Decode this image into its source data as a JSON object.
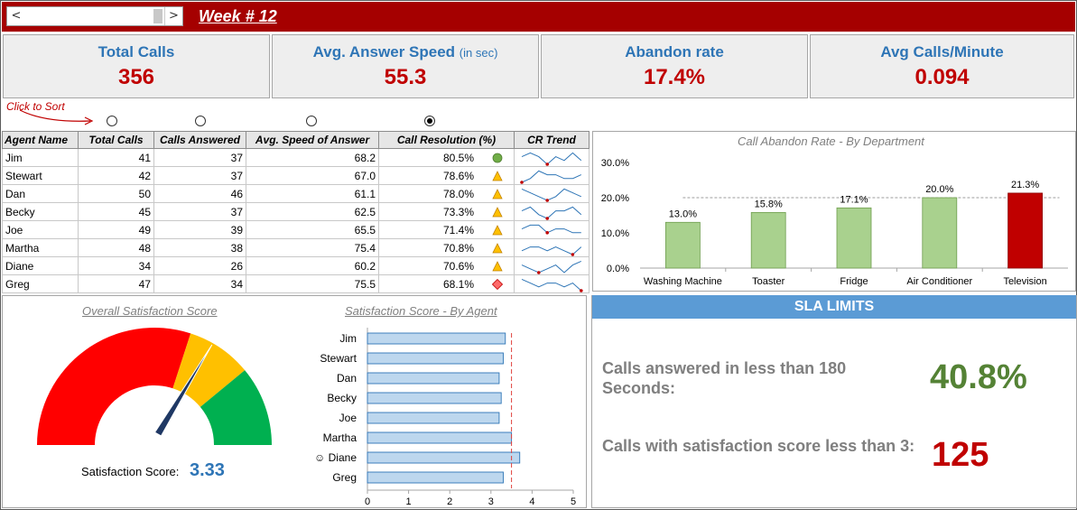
{
  "header": {
    "week_title": "Week # 12",
    "scroll_left": "<",
    "scroll_right": ">"
  },
  "kpis": [
    {
      "label": "Total Calls",
      "sub": "",
      "value": "356"
    },
    {
      "label": "Avg. Answer Speed",
      "sub": "(in sec)",
      "value": "55.3"
    },
    {
      "label": "Abandon rate",
      "sub": "",
      "value": "17.4%"
    },
    {
      "label": "Avg Calls/Minute",
      "sub": "",
      "value": "0.094"
    }
  ],
  "sort": {
    "hint": "Click to Sort",
    "selected_column": "Call Resolution (%)"
  },
  "table": {
    "headers": [
      "Agent Name",
      "Total Calls",
      "Calls Answered",
      "Avg. Speed of Answer",
      "Call Resolution (%)",
      "CR Trend"
    ],
    "rows": [
      {
        "name": "Jim",
        "total": "41",
        "answered": "37",
        "speed": "68.2",
        "resolution": "80.5%",
        "status": "good-circle-icon"
      },
      {
        "name": "Stewart",
        "total": "42",
        "answered": "37",
        "speed": "67.0",
        "resolution": "78.6%",
        "status": "warning-triangle-icon"
      },
      {
        "name": "Dan",
        "total": "50",
        "answered": "46",
        "speed": "61.1",
        "resolution": "78.0%",
        "status": "warning-triangle-icon"
      },
      {
        "name": "Becky",
        "total": "45",
        "answered": "37",
        "speed": "62.5",
        "resolution": "73.3%",
        "status": "warning-triangle-icon"
      },
      {
        "name": "Joe",
        "total": "49",
        "answered": "39",
        "speed": "65.5",
        "resolution": "71.4%",
        "status": "warning-triangle-icon"
      },
      {
        "name": "Martha",
        "total": "48",
        "answered": "38",
        "speed": "75.4",
        "resolution": "70.8%",
        "status": "warning-triangle-icon"
      },
      {
        "name": "Diane",
        "total": "34",
        "answered": "26",
        "speed": "60.2",
        "resolution": "70.6%",
        "status": "warning-triangle-icon"
      },
      {
        "name": "Greg",
        "total": "47",
        "answered": "34",
        "speed": "75.5",
        "resolution": "68.1%",
        "status": "critical-diamond-icon"
      }
    ]
  },
  "colors": {
    "header_red": "#a50000",
    "kpi_blue": "#2e75b6",
    "kpi_red": "#c00000",
    "bar_green": "#a9d18e",
    "bar_red": "#c00000",
    "sat_bar": "#bdd7ee",
    "sla_green": "#548235",
    "sla_red": "#c00000",
    "sla_header": "#5b9bd5"
  },
  "gauge": {
    "title": "Overall Satisfaction Score",
    "label": "Satisfaction Score:",
    "value": "3.33",
    "needle_value": 3.33,
    "max": 5
  },
  "sla": {
    "title": "SLA LIMITS",
    "items": [
      {
        "text": "Calls answered in less than 180 Seconds:",
        "value": "40.8%"
      },
      {
        "text": "Calls with satisfaction score less than 3:",
        "value": "125"
      }
    ]
  },
  "chart_data": [
    {
      "type": "bar",
      "title": "Call Abandon Rate - By Department",
      "categories": [
        "Washing Machine",
        "Toaster",
        "Fridge",
        "Air Conditioner",
        "Television"
      ],
      "values": [
        13.0,
        15.8,
        17.1,
        20.0,
        21.3
      ],
      "data_labels": [
        "13.0%",
        "15.8%",
        "17.1%",
        "20.0%",
        "21.3%"
      ],
      "y_ticks": [
        "0.0%",
        "10.0%",
        "20.0%",
        "30.0%"
      ],
      "ylim": [
        0,
        30
      ],
      "reference_line": 20,
      "highlight_category": "Television"
    },
    {
      "type": "bar",
      "orientation": "horizontal",
      "title": "Satisfaction Score - By Agent",
      "categories": [
        "Jim",
        "Stewart",
        "Dan",
        "Becky",
        "Joe",
        "Martha",
        "Diane",
        "Greg"
      ],
      "category_labels": [
        "Jim",
        "Stewart",
        "Dan",
        "Becky",
        "Joe",
        "Martha",
        "☺ Diane",
        "Greg"
      ],
      "values": [
        3.35,
        3.3,
        3.2,
        3.25,
        3.2,
        3.5,
        3.7,
        3.3
      ],
      "x_ticks": [
        "0",
        "1",
        "2",
        "3",
        "4",
        "5"
      ],
      "xlim": [
        0,
        5
      ],
      "reference_line": 3.5
    },
    {
      "type": "line",
      "title": "CR Trend",
      "series": [
        {
          "values": [
            3,
            4,
            3,
            1,
            3,
            2,
            4,
            2
          ]
        },
        {
          "values": [
            1,
            2,
            4,
            3,
            3,
            2,
            2,
            3
          ]
        },
        {
          "values": [
            4,
            3,
            2,
            1,
            2,
            4,
            3,
            2
          ]
        },
        {
          "values": [
            3,
            4,
            2,
            1,
            3,
            3,
            4,
            2
          ]
        },
        {
          "values": [
            3,
            4,
            4,
            2,
            3,
            3,
            2,
            2
          ]
        },
        {
          "values": [
            2,
            3,
            3,
            2,
            3,
            2,
            1,
            3
          ]
        },
        {
          "values": [
            3,
            2,
            1,
            2,
            3,
            1,
            3,
            4
          ]
        },
        {
          "values": [
            4,
            3,
            2,
            3,
            3,
            2,
            3,
            1
          ]
        }
      ]
    }
  ]
}
